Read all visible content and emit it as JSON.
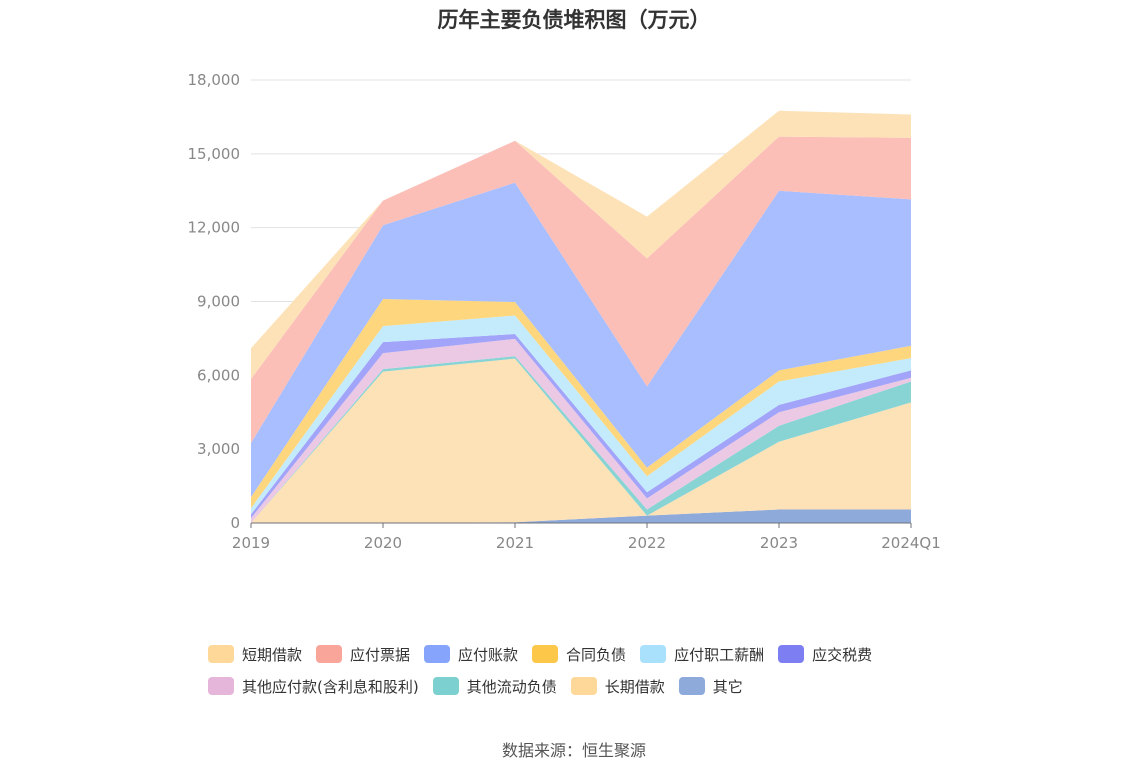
{
  "title": "历年主要负债堆积图（万元）",
  "source": "数据来源：恒生聚源",
  "chart_data": {
    "type": "area",
    "stacked": true,
    "title": "历年主要负债堆积图（万元）",
    "categories": [
      "2019",
      "2020",
      "2021",
      "2022",
      "2023",
      "2024Q1"
    ],
    "ylim": [
      0,
      18000
    ],
    "yticks": [
      "0",
      "3,000",
      "6,000",
      "9,000",
      "12,000",
      "15,000",
      "18,000"
    ],
    "ytick_values": [
      0,
      3000,
      6000,
      9000,
      12000,
      15000,
      18000
    ],
    "grid": true,
    "legend_position": "bottom",
    "series": [
      {
        "name": "其它",
        "color": "#8eaadb",
        "values": [
          0,
          0,
          30,
          300,
          550,
          550
        ]
      },
      {
        "name": "长期借款",
        "color": "#fde2b8",
        "values": [
          0,
          6150,
          6650,
          0,
          2750,
          4350
        ]
      },
      {
        "name": "其他流动负债",
        "color": "#88d4d4",
        "values": [
          0,
          100,
          100,
          250,
          650,
          850
        ]
      },
      {
        "name": "其他应付款(含利息和股利)",
        "color": "#ebc8e4",
        "values": [
          200,
          650,
          700,
          450,
          550,
          150
        ]
      },
      {
        "name": "应交税费",
        "color": "#a1a4f8",
        "values": [
          150,
          450,
          200,
          250,
          300,
          300
        ]
      },
      {
        "name": "应付职工薪酬",
        "color": "#c4ebfc",
        "values": [
          250,
          650,
          750,
          650,
          950,
          500
        ]
      },
      {
        "name": "合同负债",
        "color": "#fdd67e",
        "values": [
          450,
          1100,
          550,
          350,
          450,
          500
        ]
      },
      {
        "name": "应付账款",
        "color": "#a9befe",
        "values": [
          2200,
          3000,
          4850,
          3300,
          7300,
          5950
        ]
      },
      {
        "name": "应付票据",
        "color": "#fbbfb8",
        "values": [
          2600,
          1000,
          1700,
          5200,
          2200,
          2500
        ]
      },
      {
        "name": "短期借款",
        "color": "#fde2b8",
        "values": [
          1250,
          0,
          0,
          1700,
          1050,
          950
        ]
      }
    ]
  },
  "legend": {
    "rows": [
      [
        {
          "label": "短期借款",
          "color": "#fdd898"
        },
        {
          "label": "应付票据",
          "color": "#f9a59a"
        },
        {
          "label": "应付账款",
          "color": "#86a4fc"
        },
        {
          "label": "合同负债",
          "color": "#fdc84a"
        },
        {
          "label": "应付职工薪酬",
          "color": "#a9e0fb"
        },
        {
          "label": "应交税费",
          "color": "#7c7ef2"
        }
      ],
      [
        {
          "label": "其他应付款(含利息和股利)",
          "color": "#e6b6da"
        },
        {
          "label": "其他流动负债",
          "color": "#7dd0d0"
        },
        {
          "label": "长期借款",
          "color": "#fdd898"
        },
        {
          "label": "其它",
          "color": "#8eaadb"
        }
      ]
    ]
  }
}
